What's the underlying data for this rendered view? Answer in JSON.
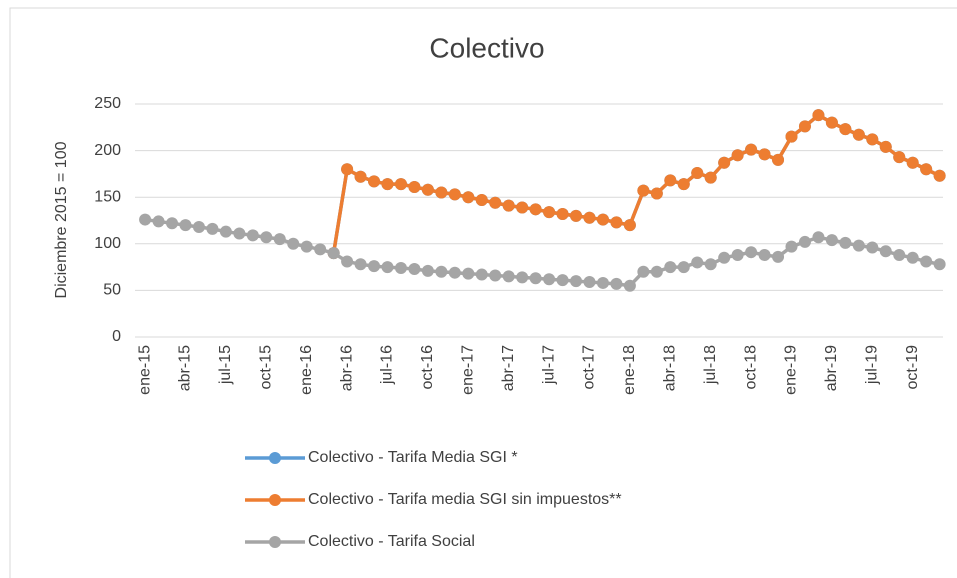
{
  "chart_data": {
    "type": "line",
    "title": "Colectivo",
    "y_label": "Diciembre 2015 = 100",
    "categories": [
      "ene-15",
      null,
      null,
      "abr-15",
      null,
      null,
      "jul-15",
      null,
      null,
      "oct-15",
      null,
      null,
      "ene-16",
      null,
      null,
      "abr-16",
      null,
      null,
      "jul-16",
      null,
      null,
      "oct-16",
      null,
      null,
      "ene-17",
      null,
      null,
      "abr-17",
      null,
      null,
      "jul-17",
      null,
      null,
      "oct-17",
      null,
      null,
      "ene-18",
      null,
      null,
      "abr-18",
      null,
      null,
      "jul-18",
      null,
      null,
      "oct-18",
      null,
      null,
      "ene-19",
      null,
      null,
      "abr-19",
      null,
      null,
      "jul-19",
      null,
      null,
      "oct-19",
      null,
      null
    ],
    "series": [
      {
        "name": "Colectivo - Tarifa Media SGI *",
        "color": "#5b9bd5",
        "values": [
          null,
          null,
          null,
          null,
          null,
          null,
          null,
          null,
          null,
          null,
          null,
          null,
          null,
          null,
          90,
          180,
          172,
          167,
          164,
          164,
          161,
          158,
          155,
          153,
          150,
          147,
          144,
          141,
          139,
          137,
          134,
          132,
          130,
          128,
          126,
          123,
          120,
          157,
          154,
          168,
          164,
          176,
          171,
          187,
          195,
          201,
          196,
          190,
          215,
          226,
          238,
          230,
          223,
          217,
          212,
          204,
          193,
          187,
          180,
          173
        ]
      },
      {
        "name": "Colectivo - Tarifa media SGI sin impuestos**",
        "color": "#ed7d31",
        "values": [
          null,
          null,
          null,
          null,
          null,
          null,
          null,
          null,
          null,
          null,
          null,
          null,
          null,
          null,
          90,
          180,
          172,
          167,
          164,
          164,
          161,
          158,
          155,
          153,
          150,
          147,
          144,
          141,
          139,
          137,
          134,
          132,
          130,
          128,
          126,
          123,
          120,
          157,
          154,
          168,
          164,
          176,
          171,
          187,
          195,
          201,
          196,
          190,
          215,
          226,
          238,
          230,
          223,
          217,
          212,
          204,
          193,
          187,
          180,
          173
        ]
      },
      {
        "name": "Colectivo - Tarifa Social",
        "color": "#a5a5a5",
        "values": [
          126,
          124,
          122,
          120,
          118,
          116,
          113,
          111,
          109,
          107,
          105,
          100,
          97,
          94,
          90,
          81,
          78,
          76,
          75,
          74,
          73,
          71,
          70,
          69,
          68,
          67,
          66,
          65,
          64,
          63,
          62,
          61,
          60,
          59,
          58,
          57,
          55,
          70,
          70,
          75,
          75,
          80,
          78,
          85,
          88,
          91,
          88,
          86,
          97,
          102,
          107,
          104,
          101,
          98,
          96,
          92,
          88,
          85,
          81,
          78
        ]
      }
    ],
    "ylim": [
      0,
      250
    ],
    "yticks": [
      0,
      50,
      100,
      150,
      200,
      250
    ],
    "grid": true
  }
}
